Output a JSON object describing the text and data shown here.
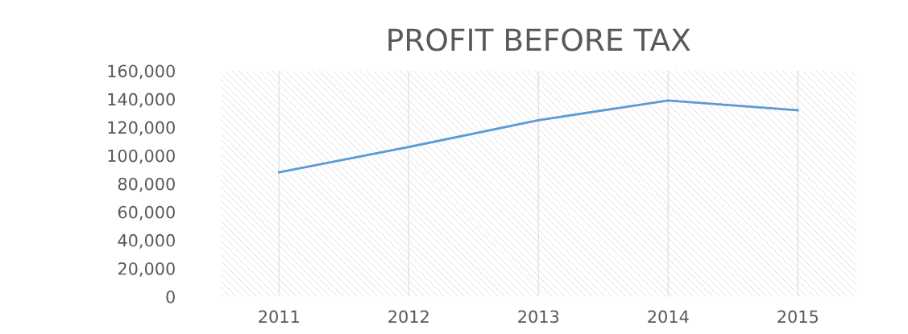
{
  "chart_data": {
    "type": "line",
    "title": "PROFIT BEFORE TAX",
    "categories": [
      "2011",
      "2012",
      "2013",
      "2014",
      "2015"
    ],
    "series": [
      {
        "color": "#5b9bd5",
        "values": [
          88000,
          106000,
          125000,
          139000,
          132000
        ]
      }
    ],
    "ylim": [
      0,
      160000
    ],
    "yticks": [
      {
        "value": 0,
        "label": "0"
      },
      {
        "value": 20000,
        "label": "20,000"
      },
      {
        "value": 40000,
        "label": "40,000"
      },
      {
        "value": 60000,
        "label": "60,000"
      },
      {
        "value": 80000,
        "label": "80,000"
      },
      {
        "value": 100000,
        "label": "100,000"
      },
      {
        "value": 120000,
        "label": "120,000"
      },
      {
        "value": 140000,
        "label": "140,000"
      },
      {
        "value": 160000,
        "label": "160,000"
      }
    ],
    "grid": "x",
    "legend": false,
    "marker": "none",
    "line_style": "solid"
  }
}
